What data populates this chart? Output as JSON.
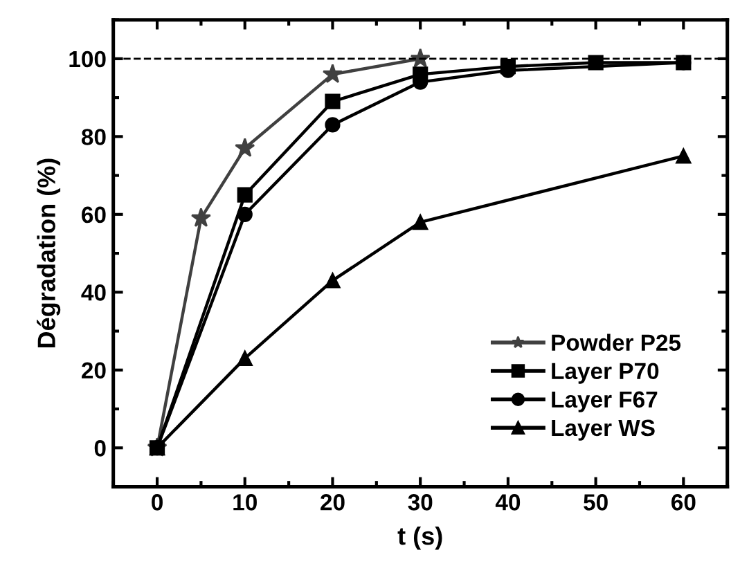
{
  "chart_data": {
    "type": "line",
    "xlabel": "t (s)",
    "ylabel": "Dégradation (%)",
    "xlim": [
      -5,
      65
    ],
    "xticks": [
      0,
      10,
      20,
      30,
      40,
      50,
      60
    ],
    "ylim": [
      -10,
      110
    ],
    "yticks": [
      0,
      20,
      40,
      60,
      80,
      100
    ],
    "grid": false,
    "legend": "bottom right",
    "line_style": "solid",
    "ref_lines": [
      {
        "axis": "y",
        "value": 100,
        "label": null,
        "color": "#000000",
        "line_style": "dashed"
      }
    ],
    "series": [
      {
        "name": "Powder P25",
        "color": "#404040",
        "marker": "star",
        "x": [
          0,
          5,
          10,
          20,
          30
        ],
        "values": [
          0,
          59,
          77,
          96,
          100
        ]
      },
      {
        "name": "Layer P70",
        "color": "#000000",
        "marker": "square",
        "x": [
          0,
          10,
          20,
          30,
          40,
          50,
          60
        ],
        "values": [
          0,
          65,
          89,
          96,
          98,
          99,
          99
        ]
      },
      {
        "name": "Layer F67",
        "color": "#000000",
        "marker": "circle",
        "x": [
          0,
          10,
          20,
          30,
          40,
          60
        ],
        "values": [
          0,
          60,
          83,
          94,
          97,
          99
        ]
      },
      {
        "name": "Layer WS",
        "color": "#000000",
        "marker": "triangle",
        "x": [
          0,
          10,
          20,
          30,
          60
        ],
        "values": [
          0,
          23,
          43,
          58,
          75
        ]
      }
    ]
  }
}
